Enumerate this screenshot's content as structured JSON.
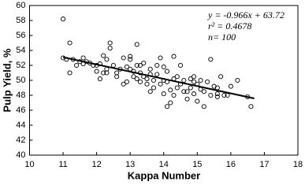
{
  "chart_data": {
    "type": "scatter",
    "x_label": "Kappa Number",
    "y_label": "Pulp Yield, %",
    "annotations": [
      "y = -0.966x + 63.72",
      "r² = 0.4678",
      "n= 100"
    ],
    "xlim": [
      10,
      18
    ],
    "xticks": [
      10,
      11,
      12,
      13,
      14,
      15,
      16,
      17,
      18
    ],
    "ylim": [
      40,
      60
    ],
    "yticks": [
      40,
      42,
      44,
      46,
      48,
      50,
      52,
      54,
      56,
      58,
      60
    ],
    "color": "#000000",
    "trend_line": {
      "x": [
        11,
        16.7
      ],
      "y": [
        53.09,
        47.58
      ]
    },
    "x": [
      11.0,
      11.0,
      11.1,
      11.2,
      11.2,
      11.3,
      11.4,
      11.5,
      11.6,
      11.8,
      11.9,
      12.0,
      12.1,
      12.1,
      12.2,
      12.2,
      12.3,
      12.3,
      12.4,
      12.4,
      12.5,
      12.6,
      12.7,
      12.8,
      12.9,
      12.9,
      13.0,
      13.0,
      13.1,
      13.1,
      13.2,
      13.2,
      13.2,
      13.3,
      13.3,
      13.4,
      13.4,
      13.5,
      13.5,
      13.6,
      13.6,
      13.7,
      13.7,
      13.8,
      13.8,
      13.9,
      13.9,
      14.0,
      14.0,
      14.0,
      14.1,
      14.1,
      14.2,
      14.2,
      14.3,
      14.3,
      14.3,
      14.4,
      14.4,
      14.5,
      14.6,
      14.6,
      14.7,
      14.7,
      14.8,
      14.8,
      14.9,
      14.9,
      15.0,
      15.0,
      15.1,
      15.2,
      15.2,
      15.3,
      15.4,
      15.4,
      15.5,
      15.6,
      15.6,
      15.7,
      15.8,
      15.9,
      16.0,
      16.2,
      16.5,
      16.6,
      12.0,
      11.7,
      13.0,
      14.1,
      12.6,
      13.3,
      14.5,
      15.1,
      11.6,
      12.8,
      13.6,
      14.9,
      15.6,
      12.3
    ],
    "values": [
      58.2,
      53.0,
      52.8,
      55.0,
      51.0,
      52.8,
      52.0,
      52.5,
      53.0,
      52.3,
      52.0,
      51.2,
      50.2,
      52.2,
      51.0,
      53.3,
      51.0,
      52.8,
      54.3,
      55.0,
      52.0,
      50.5,
      51.5,
      49.5,
      51.8,
      49.8,
      53.2,
      52.8,
      51.2,
      50.5,
      52.0,
      54.8,
      50.2,
      51.0,
      49.8,
      52.3,
      50.5,
      49.5,
      50.2,
      51.5,
      48.5,
      50.0,
      49.0,
      52.0,
      50.8,
      53.0,
      49.5,
      51.8,
      48.2,
      50.0,
      49.8,
      51.2,
      47.0,
      48.7,
      50.2,
      53.2,
      48.0,
      50.5,
      49.0,
      52.0,
      48.5,
      50.0,
      47.5,
      48.5,
      50.2,
      49.0,
      50.5,
      48.2,
      49.5,
      47.2,
      50.0,
      48.5,
      46.5,
      49.8,
      52.8,
      48.0,
      49.2,
      48.2,
      47.8,
      50.5,
      48.0,
      48.0,
      49.2,
      50.0,
      47.8,
      46.5,
      52.0,
      52.5,
      51.5,
      46.5,
      51.0,
      52.0,
      49.5,
      48.8,
      52.2,
      53.0,
      50.8,
      49.8,
      49.0,
      51.5
    ]
  }
}
